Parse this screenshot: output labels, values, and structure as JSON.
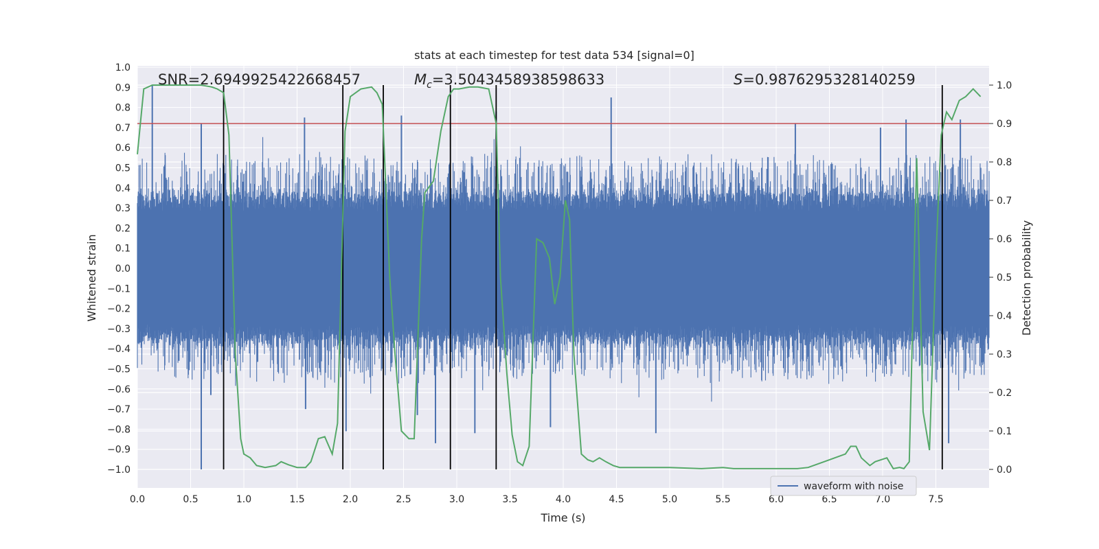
{
  "chart_data": {
    "type": "line",
    "title": "stats at each timestep for test data 534 [signal=0]",
    "xlabel": "Time (s)",
    "ylabel": "Whitened strain",
    "y2label": "Detection probability",
    "xlim": [
      0.0,
      8.0
    ],
    "ylim": [
      -1.0,
      1.0
    ],
    "y2lim": [
      0.0,
      1.0
    ],
    "xticks": [
      "0.0",
      "0.5",
      "1.0",
      "1.5",
      "2.0",
      "2.5",
      "3.0",
      "3.5",
      "4.0",
      "4.5",
      "5.0",
      "5.5",
      "6.0",
      "6.5",
      "7.0",
      "7.5"
    ],
    "yticks": [
      "1.0",
      "0.9",
      "0.8",
      "0.7",
      "0.6",
      "0.5",
      "0.4",
      "0.3",
      "0.2",
      "0.1",
      "0.0",
      "−0.1",
      "−0.2",
      "−0.3",
      "−0.4",
      "−0.5",
      "−0.6",
      "−0.7",
      "−0.8",
      "−0.9",
      "−1.0"
    ],
    "y2ticks": [
      "1.0",
      "0.9",
      "0.8",
      "0.7",
      "0.6",
      "0.5",
      "0.4",
      "0.3",
      "0.2",
      "0.1",
      "0.0"
    ],
    "grid": true,
    "legend": {
      "placement": "lower-right",
      "entries": [
        "waveform with noise"
      ]
    },
    "annotations": {
      "snr": "SNR=2.6949925422668457",
      "mc_symbol": "M",
      "mc_sub": "c",
      "mc_value": "=3.5043458938598633",
      "s_symbol": "S",
      "s_value": "=0.9876295328140259"
    },
    "colors": {
      "waveform": "#4c72b0",
      "probability": "#55a868",
      "threshold": "#c44e52",
      "events": "#000000",
      "background": "#eaeaf2"
    },
    "waveform": {
      "name": "waveform with noise",
      "duration": 8.0,
      "core_amplitude": 0.33,
      "peaks_high": [
        [
          0.14,
          0.91
        ],
        [
          0.6,
          0.72
        ],
        [
          1.57,
          0.75
        ],
        [
          2.48,
          0.76
        ],
        [
          3.37,
          0.78
        ],
        [
          4.45,
          0.85
        ],
        [
          6.18,
          0.72
        ],
        [
          6.98,
          0.7
        ],
        [
          7.22,
          0.74
        ],
        [
          7.73,
          0.74
        ]
      ],
      "peaks_low": [
        [
          0.6,
          -1.0
        ],
        [
          0.69,
          -0.63
        ],
        [
          1.58,
          -0.7
        ],
        [
          1.96,
          -0.81
        ],
        [
          2.63,
          -0.73
        ],
        [
          2.8,
          -0.87
        ],
        [
          3.17,
          -0.82
        ],
        [
          3.88,
          -0.79
        ],
        [
          4.87,
          -0.82
        ],
        [
          7.62,
          -0.87
        ]
      ]
    },
    "threshold_y2": 0.9,
    "event_times": [
      0.81,
      1.93,
      2.31,
      2.94,
      3.37,
      7.56
    ],
    "probability_series": {
      "name": "detection probability",
      "x": [
        0.0,
        0.06,
        0.14,
        0.25,
        0.4,
        0.6,
        0.7,
        0.75,
        0.81,
        0.86,
        0.92,
        0.97,
        1.0,
        1.06,
        1.12,
        1.2,
        1.3,
        1.35,
        1.42,
        1.5,
        1.58,
        1.63,
        1.7,
        1.76,
        1.83,
        1.88,
        1.95,
        2.0,
        2.1,
        2.2,
        2.25,
        2.3,
        2.37,
        2.42,
        2.48,
        2.55,
        2.6,
        2.67,
        2.7,
        2.78,
        2.85,
        2.92,
        2.97,
        3.02,
        3.12,
        3.2,
        3.3,
        3.37,
        3.41,
        3.47,
        3.52,
        3.57,
        3.62,
        3.68,
        3.75,
        3.81,
        3.87,
        3.92,
        3.97,
        4.02,
        4.06,
        4.1,
        4.17,
        4.23,
        4.28,
        4.34,
        4.4,
        4.47,
        4.53,
        4.6,
        5.0,
        5.3,
        5.5,
        5.6,
        6.0,
        6.2,
        6.3,
        6.45,
        6.55,
        6.65,
        6.7,
        6.75,
        6.8,
        6.88,
        6.93,
        7.04,
        7.1,
        7.16,
        7.2,
        7.25,
        7.32,
        7.38,
        7.44,
        7.5,
        7.55,
        7.6,
        7.65,
        7.72,
        7.78,
        7.85,
        7.92
      ],
      "y": [
        0.82,
        0.99,
        1.0,
        1.0,
        1.0,
        1.0,
        0.995,
        0.99,
        0.98,
        0.87,
        0.3,
        0.08,
        0.04,
        0.03,
        0.01,
        0.005,
        0.01,
        0.02,
        0.012,
        0.005,
        0.005,
        0.02,
        0.08,
        0.085,
        0.04,
        0.12,
        0.88,
        0.97,
        0.99,
        0.995,
        0.98,
        0.95,
        0.5,
        0.3,
        0.1,
        0.08,
        0.08,
        0.6,
        0.72,
        0.75,
        0.88,
        0.97,
        0.99,
        0.99,
        0.995,
        0.995,
        0.99,
        0.9,
        0.5,
        0.25,
        0.09,
        0.02,
        0.01,
        0.06,
        0.6,
        0.59,
        0.55,
        0.43,
        0.5,
        0.7,
        0.65,
        0.3,
        0.04,
        0.025,
        0.02,
        0.03,
        0.02,
        0.01,
        0.005,
        0.005,
        0.005,
        0.002,
        0.005,
        0.002,
        0.002,
        0.002,
        0.005,
        0.02,
        0.03,
        0.04,
        0.06,
        0.06,
        0.03,
        0.01,
        0.02,
        0.03,
        0.002,
        0.005,
        0.002,
        0.02,
        0.81,
        0.15,
        0.05,
        0.55,
        0.87,
        0.93,
        0.91,
        0.96,
        0.97,
        0.99,
        0.97
      ]
    }
  }
}
